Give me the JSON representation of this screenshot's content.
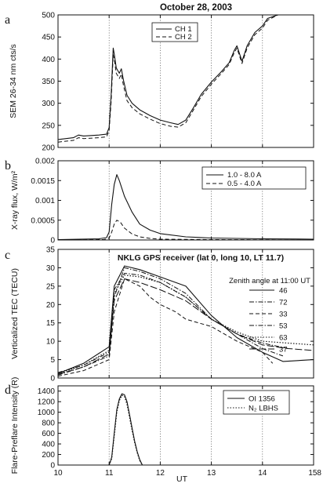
{
  "figure": {
    "title": "October 28, 2003",
    "xlabel": "UT",
    "x_ticks": [
      "10",
      "11",
      "12",
      "13",
      "14",
      "158"
    ]
  },
  "chart_data": [
    {
      "panel": "a",
      "type": "line",
      "title": "",
      "ylabel": "SEM 26-34 nm cts/s",
      "xlim": [
        10,
        15
      ],
      "ylim": [
        200,
        500
      ],
      "y_ticks": [
        200,
        250,
        300,
        350,
        400,
        450,
        500
      ],
      "series": [
        {
          "name": "CH 1",
          "style": "solid",
          "points": [
            [
              10,
              218
            ],
            [
              10.3,
              222
            ],
            [
              10.4,
              228
            ],
            [
              10.5,
              226
            ],
            [
              10.8,
              228
            ],
            [
              10.95,
              230
            ],
            [
              11.0,
              245
            ],
            [
              11.04,
              320
            ],
            [
              11.08,
              425
            ],
            [
              11.1,
              412
            ],
            [
              11.14,
              380
            ],
            [
              11.2,
              368
            ],
            [
              11.24,
              378
            ],
            [
              11.28,
              352
            ],
            [
              11.35,
              318
            ],
            [
              11.45,
              300
            ],
            [
              11.6,
              285
            ],
            [
              11.8,
              272
            ],
            [
              12.0,
              262
            ],
            [
              12.2,
              256
            ],
            [
              12.35,
              252
            ],
            [
              12.5,
              262
            ],
            [
              12.65,
              290
            ],
            [
              12.8,
              320
            ],
            [
              13.0,
              348
            ],
            [
              13.2,
              372
            ],
            [
              13.35,
              392
            ],
            [
              13.45,
              420
            ],
            [
              13.5,
              430
            ],
            [
              13.6,
              395
            ],
            [
              13.7,
              430
            ],
            [
              13.85,
              460
            ],
            [
              14.0,
              475
            ],
            [
              14.1,
              492
            ],
            [
              14.3,
              500
            ]
          ]
        },
        {
          "name": "CH 2",
          "style": "dashed",
          "points": [
            [
              10,
              212
            ],
            [
              10.3,
              216
            ],
            [
              10.4,
              222
            ],
            [
              10.5,
              220
            ],
            [
              10.8,
              222
            ],
            [
              10.95,
              224
            ],
            [
              11.0,
              238
            ],
            [
              11.04,
              305
            ],
            [
              11.08,
              410
            ],
            [
              11.1,
              400
            ],
            [
              11.14,
              368
            ],
            [
              11.2,
              356
            ],
            [
              11.24,
              366
            ],
            [
              11.28,
              340
            ],
            [
              11.35,
              306
            ],
            [
              11.45,
              290
            ],
            [
              11.6,
              276
            ],
            [
              11.8,
              264
            ],
            [
              12.0,
              254
            ],
            [
              12.2,
              248
            ],
            [
              12.35,
              246
            ],
            [
              12.5,
              256
            ],
            [
              12.65,
              285
            ],
            [
              12.8,
              315
            ],
            [
              13.0,
              343
            ],
            [
              13.2,
              368
            ],
            [
              13.35,
              388
            ],
            [
              13.45,
              415
            ],
            [
              13.5,
              425
            ],
            [
              13.6,
              390
            ],
            [
              13.7,
              425
            ],
            [
              13.85,
              455
            ],
            [
              14.0,
              470
            ],
            [
              14.1,
              488
            ],
            [
              14.3,
              500
            ]
          ]
        }
      ]
    },
    {
      "panel": "b",
      "type": "line",
      "title": "",
      "ylabel": "X-ray flux, W/m²",
      "xlim": [
        10,
        15
      ],
      "ylim": [
        0,
        0.002
      ],
      "y_ticks": [
        "0",
        "0.0005",
        "0.001",
        "0.0015",
        "0.002"
      ],
      "series": [
        {
          "name": "1.0 - 8.0 A",
          "style": "solid",
          "points": [
            [
              10,
              1e-05
            ],
            [
              10.8,
              3e-05
            ],
            [
              10.95,
              6e-05
            ],
            [
              11.0,
              0.0002
            ],
            [
              11.05,
              0.0009
            ],
            [
              11.1,
              0.0014
            ],
            [
              11.15,
              0.00165
            ],
            [
              11.2,
              0.0015
            ],
            [
              11.3,
              0.0011
            ],
            [
              11.45,
              0.0007
            ],
            [
              11.6,
              0.0004
            ],
            [
              11.8,
              0.00025
            ],
            [
              12.0,
              0.00016
            ],
            [
              12.5,
              8e-05
            ],
            [
              13.0,
              5e-05
            ],
            [
              14.0,
              3e-05
            ],
            [
              15.0,
              2e-05
            ]
          ]
        },
        {
          "name": "0.5 - 4.0 A",
          "style": "dashed",
          "points": [
            [
              10,
              0
            ],
            [
              10.9,
              1e-05
            ],
            [
              11.0,
              5e-05
            ],
            [
              11.05,
              0.0002
            ],
            [
              11.1,
              0.0004
            ],
            [
              11.15,
              0.0005
            ],
            [
              11.22,
              0.00045
            ],
            [
              11.3,
              0.0003
            ],
            [
              11.45,
              0.00015
            ],
            [
              11.6,
              8e-05
            ],
            [
              11.8,
              4e-05
            ],
            [
              12.0,
              2e-05
            ],
            [
              13.0,
              1e-05
            ],
            [
              15.0,
              0
            ]
          ]
        }
      ]
    },
    {
      "panel": "c",
      "type": "line",
      "title": "NKLG GPS receiver (lat 0, long 10, LT 11.7)",
      "ylabel": "Verticalized TEC (TECU)",
      "xlim": [
        10,
        15
      ],
      "ylim": [
        0,
        35
      ],
      "y_ticks": [
        0,
        5,
        10,
        15,
        20,
        25,
        30,
        35
      ],
      "legend_title": "Zenith angle at 11:00 UT",
      "series": [
        {
          "name": "46",
          "style": "solid",
          "points": [
            [
              10,
              1.2
            ],
            [
              10.5,
              4
            ],
            [
              11.0,
              8.5
            ],
            [
              11.1,
              25
            ],
            [
              11.3,
              30.5
            ],
            [
              11.6,
              29.5
            ],
            [
              12.0,
              27.5
            ],
            [
              12.5,
              25
            ],
            [
              13.0,
              17
            ],
            [
              13.5,
              11
            ],
            [
              14.0,
              7
            ],
            [
              14.4,
              4.5
            ],
            [
              15.0,
              5
            ]
          ]
        },
        {
          "name": "72",
          "style": "dashdot",
          "points": [
            [
              10,
              0.8
            ],
            [
              10.5,
              3
            ],
            [
              11.0,
              6
            ],
            [
              11.1,
              22
            ],
            [
              11.3,
              30
            ],
            [
              11.6,
              29
            ],
            [
              12.0,
              27
            ],
            [
              12.5,
              23
            ],
            [
              13.0,
              16
            ],
            [
              13.5,
              12
            ],
            [
              14.0,
              8
            ],
            [
              14.4,
              6
            ]
          ]
        },
        {
          "name": "33",
          "style": "dashed",
          "points": [
            [
              10,
              0.5
            ],
            [
              10.5,
              2
            ],
            [
              11.0,
              5
            ],
            [
              11.1,
              18
            ],
            [
              11.3,
              27
            ],
            [
              11.6,
              25
            ],
            [
              11.8,
              22
            ],
            [
              12.0,
              20
            ],
            [
              12.3,
              18
            ],
            [
              12.5,
              16
            ],
            [
              13.0,
              14
            ],
            [
              13.5,
              10
            ],
            [
              14.0,
              7
            ],
            [
              14.2,
              4
            ]
          ]
        },
        {
          "name": "53",
          "style": "dashdot",
          "points": [
            [
              10,
              1.5
            ],
            [
              10.5,
              3.5
            ],
            [
              11.0,
              7
            ],
            [
              11.1,
              24
            ],
            [
              11.3,
              28.5
            ],
            [
              11.6,
              28
            ],
            [
              12.0,
              26
            ],
            [
              12.5,
              22
            ],
            [
              13.0,
              16
            ],
            [
              13.5,
              12
            ],
            [
              14.0,
              9.5
            ],
            [
              14.5,
              8
            ]
          ]
        },
        {
          "name": "63",
          "style": "dotted",
          "points": [
            [
              10,
              1.2
            ],
            [
              10.5,
              3.5
            ],
            [
              11.0,
              7.5
            ],
            [
              11.1,
              23
            ],
            [
              11.3,
              28
            ],
            [
              11.6,
              27.5
            ],
            [
              12.0,
              26
            ],
            [
              12.5,
              22
            ],
            [
              13.0,
              16
            ],
            [
              13.5,
              12.5
            ],
            [
              14.0,
              10
            ],
            [
              14.5,
              9.5
            ],
            [
              15.0,
              9
            ]
          ]
        },
        {
          "name": "37",
          "style": "longdash",
          "points": [
            [
              10,
              1
            ],
            [
              10.5,
              3
            ],
            [
              11.0,
              6.5
            ],
            [
              11.1,
              21
            ],
            [
              11.3,
              27
            ],
            [
              11.6,
              26
            ],
            [
              12.0,
              24
            ],
            [
              12.5,
              21
            ],
            [
              13.0,
              16
            ],
            [
              13.5,
              12
            ],
            [
              14.0,
              9
            ],
            [
              14.5,
              8
            ],
            [
              15.0,
              7.5
            ]
          ]
        }
      ]
    },
    {
      "panel": "d",
      "type": "line",
      "title": "",
      "ylabel": "Flare-Preflare Intensity (R)",
      "xlim": [
        10,
        15
      ],
      "ylim": [
        0,
        1500
      ],
      "y_ticks": [
        0,
        200,
        400,
        600,
        800,
        1000,
        1200,
        1400
      ],
      "series": [
        {
          "name": "OI 1356",
          "style": "solid",
          "points": [
            [
              11.0,
              0
            ],
            [
              11.05,
              150
            ],
            [
              11.1,
              600
            ],
            [
              11.15,
              1050
            ],
            [
              11.2,
              1250
            ],
            [
              11.25,
              1350
            ],
            [
              11.3,
              1330
            ],
            [
              11.35,
              1200
            ],
            [
              11.4,
              950
            ],
            [
              11.45,
              700
            ],
            [
              11.5,
              450
            ],
            [
              11.55,
              250
            ],
            [
              11.6,
              100
            ],
            [
              11.65,
              0
            ]
          ]
        },
        {
          "name": "N₂ LBHS",
          "style": "dotted",
          "points": [
            [
              11.0,
              0
            ],
            [
              11.05,
              120
            ],
            [
              11.1,
              550
            ],
            [
              11.15,
              1000
            ],
            [
              11.2,
              1220
            ],
            [
              11.25,
              1320
            ],
            [
              11.3,
              1300
            ],
            [
              11.35,
              1150
            ],
            [
              11.4,
              900
            ],
            [
              11.45,
              650
            ],
            [
              11.5,
              420
            ],
            [
              11.55,
              230
            ],
            [
              11.6,
              80
            ],
            [
              11.65,
              0
            ]
          ]
        }
      ]
    }
  ]
}
